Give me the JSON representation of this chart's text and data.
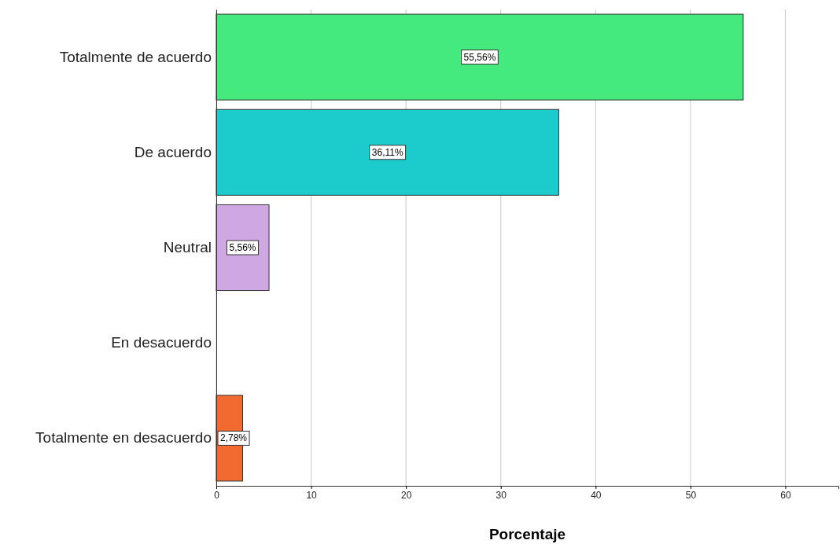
{
  "chart_data": {
    "type": "bar",
    "orientation": "horizontal",
    "xlabel": "Porcentaje",
    "categories": [
      "Totalmente de acuerdo",
      "De acuerdo",
      "Neutral",
      "En desacuerdo",
      "Totalmente en desacuerdo"
    ],
    "values": [
      55.56,
      36.11,
      5.56,
      0,
      2.78
    ],
    "colors": [
      "#44ea7d",
      "#1ccccc",
      "#cfa8e3",
      "#999999",
      "#f26a2f"
    ],
    "value_labels": [
      "55,56%",
      "36,11%",
      "5,56%",
      null,
      "2,78%"
    ],
    "xlim": [
      0,
      65.6
    ],
    "xticks": [
      0,
      10,
      20,
      30,
      40,
      50,
      60
    ],
    "grid": "x"
  }
}
